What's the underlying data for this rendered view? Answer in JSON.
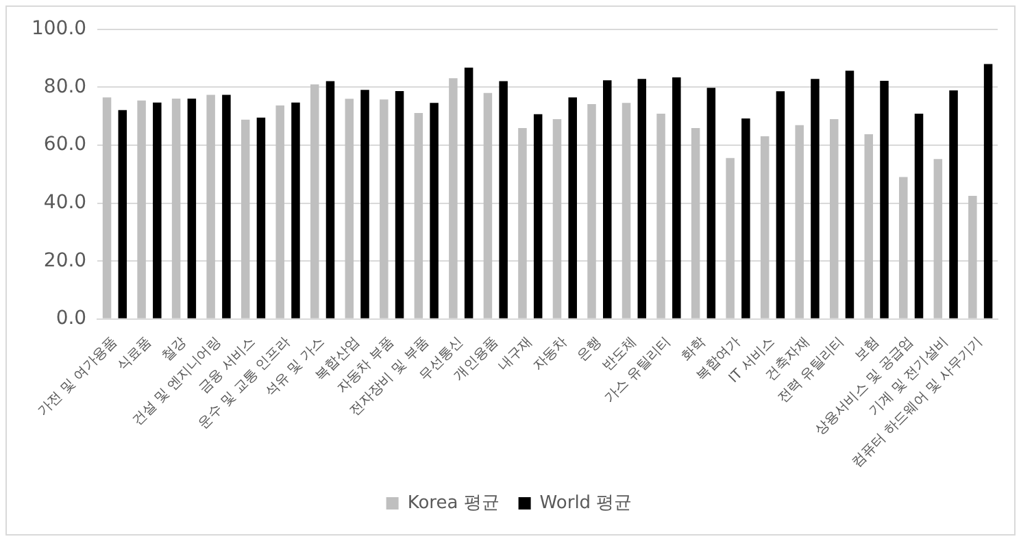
{
  "chart_data": {
    "type": "bar",
    "categories": [
      "가전 및 여가용품",
      "식료품",
      "철강",
      "건설 및 엔지니어링",
      "금융 서비스",
      "운수 및 교통 인프라",
      "석유 및 가스",
      "복합산업",
      "자동차 부품",
      "전자장비 및 부품",
      "무선통신",
      "개인용품",
      "내구재",
      "자동차",
      "은행",
      "반도체",
      "가스 유틸리티",
      "화학",
      "복합여가",
      "IT 서비스",
      "건축자재",
      "전력 유틸리티",
      "보험",
      "상용서비스 및 공급업",
      "기계 및 전기설비",
      "컴퓨터 하드웨어 및 사무기기"
    ],
    "series": [
      {
        "name": "Korea 평균",
        "color": "#bfbfbf",
        "values": [
          76.5,
          75.4,
          76.1,
          77.4,
          68.8,
          73.7,
          81.0,
          76.0,
          75.8,
          71.1,
          83.1,
          78.0,
          65.9,
          69.0,
          74.2,
          74.6,
          70.9,
          65.9,
          55.6,
          63.1,
          66.9,
          69.0,
          63.8,
          49.0,
          55.2,
          42.5
        ]
      },
      {
        "name": "World 평균",
        "color": "#000000",
        "values": [
          72.1,
          74.7,
          76.1,
          77.4,
          69.5,
          74.7,
          82.1,
          79.1,
          78.7,
          74.6,
          86.8,
          82.1,
          70.7,
          76.5,
          82.4,
          82.9,
          83.4,
          79.8,
          69.2,
          78.6,
          82.9,
          85.7,
          82.2,
          70.9,
          78.9,
          88.0
        ]
      }
    ],
    "ylim": [
      0,
      100
    ],
    "yticks": [
      {
        "value": 0,
        "label": "0.0"
      },
      {
        "value": 20,
        "label": "20.0"
      },
      {
        "value": 40,
        "label": "40.0"
      },
      {
        "value": 60,
        "label": "60.0"
      },
      {
        "value": 80,
        "label": "80.0"
      },
      {
        "value": 100,
        "label": "100.0"
      }
    ],
    "grid": "y",
    "legend": "bottom"
  }
}
